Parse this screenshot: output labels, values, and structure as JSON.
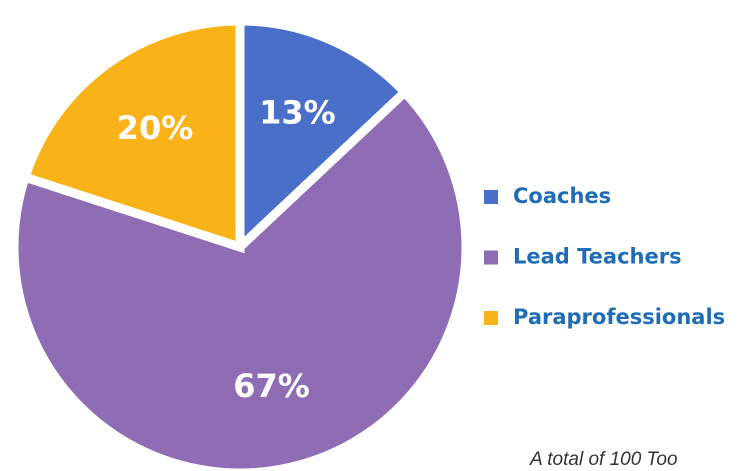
{
  "chart_data": {
    "type": "pie",
    "categories": [
      "Coaches",
      "Lead Teachers",
      "Paraprofessionals"
    ],
    "values": [
      13,
      67,
      20
    ],
    "value_labels": [
      "13%",
      "67%",
      "20%"
    ],
    "colors": [
      "#4a6fc8",
      "#8f6db4",
      "#fab219"
    ],
    "legend": "right",
    "annotation": "A total of 100 Too"
  }
}
